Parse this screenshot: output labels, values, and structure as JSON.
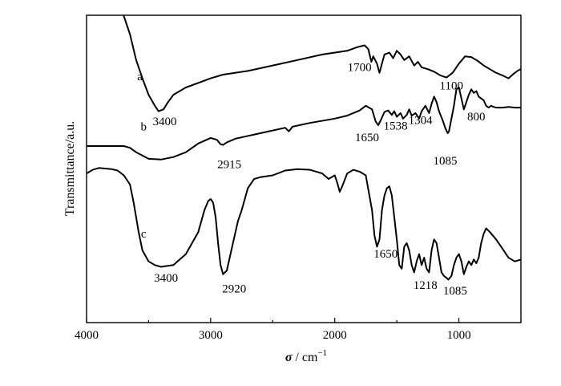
{
  "chart_data": {
    "type": "line",
    "xlabel_symbol": "σ",
    "xlabel_unit": "cm",
    "xlabel_exp": "−1",
    "ylabel": "Transmittance/a.u.",
    "xlim": [
      4000,
      500
    ],
    "reversed_x": true,
    "x_ticks": [
      "4000",
      "3000",
      "2000",
      "1000"
    ],
    "x_tick_values": [
      4000,
      3000,
      2000,
      1000
    ],
    "series": [
      {
        "name": "a",
        "label_at": [
          3570,
          1.25
        ],
        "points": [
          [
            3700,
            3.0
          ],
          [
            3650,
            2.5
          ],
          [
            3600,
            1.8
          ],
          [
            3550,
            1.3
          ],
          [
            3500,
            0.85
          ],
          [
            3450,
            0.55
          ],
          [
            3420,
            0.4
          ],
          [
            3380,
            0.45
          ],
          [
            3350,
            0.62
          ],
          [
            3300,
            0.85
          ],
          [
            3200,
            1.05
          ],
          [
            3000,
            1.3
          ],
          [
            2900,
            1.4
          ],
          [
            2700,
            1.5
          ],
          [
            2500,
            1.65
          ],
          [
            2300,
            1.8
          ],
          [
            2100,
            1.95
          ],
          [
            1900,
            2.05
          ],
          [
            1820,
            2.15
          ],
          [
            1760,
            2.2
          ],
          [
            1730,
            2.1
          ],
          [
            1705,
            1.75
          ],
          [
            1690,
            1.9
          ],
          [
            1660,
            1.7
          ],
          [
            1640,
            1.45
          ],
          [
            1620,
            1.7
          ],
          [
            1600,
            1.95
          ],
          [
            1560,
            2.0
          ],
          [
            1530,
            1.85
          ],
          [
            1500,
            2.05
          ],
          [
            1470,
            1.95
          ],
          [
            1440,
            1.8
          ],
          [
            1400,
            1.9
          ],
          [
            1360,
            1.65
          ],
          [
            1330,
            1.75
          ],
          [
            1300,
            1.6
          ],
          [
            1250,
            1.55
          ],
          [
            1200,
            1.48
          ],
          [
            1150,
            1.38
          ],
          [
            1100,
            1.32
          ],
          [
            1050,
            1.45
          ],
          [
            1000,
            1.7
          ],
          [
            950,
            1.9
          ],
          [
            900,
            1.88
          ],
          [
            850,
            1.78
          ],
          [
            800,
            1.65
          ],
          [
            750,
            1.55
          ],
          [
            700,
            1.45
          ],
          [
            650,
            1.38
          ],
          [
            600,
            1.3
          ],
          [
            560,
            1.42
          ],
          [
            520,
            1.52
          ],
          [
            500,
            1.55
          ]
        ]
      },
      {
        "name": "b",
        "label_at": [
          3540,
          -0.12
        ],
        "points": [
          [
            4000,
            -0.55
          ],
          [
            3900,
            -0.55
          ],
          [
            3800,
            -0.55
          ],
          [
            3700,
            -0.55
          ],
          [
            3650,
            -0.6
          ],
          [
            3600,
            -0.72
          ],
          [
            3500,
            -0.9
          ],
          [
            3400,
            -0.92
          ],
          [
            3300,
            -0.85
          ],
          [
            3200,
            -0.72
          ],
          [
            3100,
            -0.48
          ],
          [
            3000,
            -0.33
          ],
          [
            2950,
            -0.38
          ],
          [
            2920,
            -0.5
          ],
          [
            2900,
            -0.52
          ],
          [
            2870,
            -0.45
          ],
          [
            2800,
            -0.35
          ],
          [
            2600,
            -0.2
          ],
          [
            2400,
            -0.05
          ],
          [
            2370,
            -0.15
          ],
          [
            2340,
            -0.02
          ],
          [
            2200,
            0.08
          ],
          [
            2000,
            0.2
          ],
          [
            1900,
            0.28
          ],
          [
            1800,
            0.42
          ],
          [
            1750,
            0.55
          ],
          [
            1700,
            0.45
          ],
          [
            1670,
            0.12
          ],
          [
            1650,
            0.02
          ],
          [
            1630,
            0.15
          ],
          [
            1600,
            0.38
          ],
          [
            1570,
            0.42
          ],
          [
            1540,
            0.3
          ],
          [
            1520,
            0.4
          ],
          [
            1500,
            0.25
          ],
          [
            1470,
            0.35
          ],
          [
            1450,
            0.2
          ],
          [
            1420,
            0.3
          ],
          [
            1400,
            0.45
          ],
          [
            1380,
            0.28
          ],
          [
            1350,
            0.35
          ],
          [
            1320,
            0.2
          ],
          [
            1300,
            0.4
          ],
          [
            1270,
            0.55
          ],
          [
            1240,
            0.35
          ],
          [
            1220,
            0.6
          ],
          [
            1200,
            0.8
          ],
          [
            1180,
            0.65
          ],
          [
            1160,
            0.4
          ],
          [
            1130,
            0.15
          ],
          [
            1110,
            -0.05
          ],
          [
            1090,
            -0.2
          ],
          [
            1080,
            -0.15
          ],
          [
            1060,
            0.2
          ],
          [
            1040,
            0.55
          ],
          [
            1020,
            1.0
          ],
          [
            1000,
            1.05
          ],
          [
            980,
            0.75
          ],
          [
            960,
            0.45
          ],
          [
            940,
            0.65
          ],
          [
            920,
            0.85
          ],
          [
            900,
            1.0
          ],
          [
            880,
            0.9
          ],
          [
            860,
            0.95
          ],
          [
            840,
            0.8
          ],
          [
            820,
            0.75
          ],
          [
            800,
            0.7
          ],
          [
            780,
            0.55
          ],
          [
            760,
            0.5
          ],
          [
            740,
            0.55
          ],
          [
            720,
            0.52
          ],
          [
            700,
            0.5
          ],
          [
            650,
            0.5
          ],
          [
            600,
            0.52
          ],
          [
            550,
            0.5
          ],
          [
            500,
            0.5
          ]
        ]
      },
      {
        "name": "c",
        "label_at": [
          3540,
          -3.05
        ],
        "points": [
          [
            4000,
            -1.3
          ],
          [
            3950,
            -1.2
          ],
          [
            3900,
            -1.15
          ],
          [
            3800,
            -1.18
          ],
          [
            3750,
            -1.22
          ],
          [
            3700,
            -1.35
          ],
          [
            3650,
            -1.6
          ],
          [
            3620,
            -2.1
          ],
          [
            3580,
            -2.9
          ],
          [
            3550,
            -3.4
          ],
          [
            3500,
            -3.7
          ],
          [
            3450,
            -3.8
          ],
          [
            3400,
            -3.85
          ],
          [
            3300,
            -3.8
          ],
          [
            3200,
            -3.5
          ],
          [
            3100,
            -2.9
          ],
          [
            3050,
            -2.3
          ],
          [
            3020,
            -2.05
          ],
          [
            3000,
            -2.0
          ],
          [
            2980,
            -2.1
          ],
          [
            2960,
            -2.5
          ],
          [
            2940,
            -3.2
          ],
          [
            2920,
            -3.8
          ],
          [
            2900,
            -4.05
          ],
          [
            2870,
            -3.95
          ],
          [
            2840,
            -3.5
          ],
          [
            2800,
            -2.9
          ],
          [
            2780,
            -2.6
          ],
          [
            2750,
            -2.3
          ],
          [
            2700,
            -1.7
          ],
          [
            2650,
            -1.45
          ],
          [
            2600,
            -1.4
          ],
          [
            2500,
            -1.35
          ],
          [
            2400,
            -1.22
          ],
          [
            2300,
            -1.18
          ],
          [
            2200,
            -1.2
          ],
          [
            2100,
            -1.3
          ],
          [
            2050,
            -1.45
          ],
          [
            2000,
            -1.35
          ],
          [
            1980,
            -1.55
          ],
          [
            1960,
            -1.8
          ],
          [
            1940,
            -1.65
          ],
          [
            1900,
            -1.3
          ],
          [
            1850,
            -1.2
          ],
          [
            1800,
            -1.25
          ],
          [
            1750,
            -1.35
          ],
          [
            1700,
            -2.3
          ],
          [
            1680,
            -3.0
          ],
          [
            1660,
            -3.3
          ],
          [
            1640,
            -3.1
          ],
          [
            1620,
            -2.3
          ],
          [
            1600,
            -1.9
          ],
          [
            1580,
            -1.7
          ],
          [
            1560,
            -1.65
          ],
          [
            1540,
            -1.9
          ],
          [
            1520,
            -2.5
          ],
          [
            1500,
            -3.1
          ],
          [
            1480,
            -3.8
          ],
          [
            1460,
            -3.9
          ],
          [
            1440,
            -3.3
          ],
          [
            1420,
            -3.2
          ],
          [
            1400,
            -3.4
          ],
          [
            1380,
            -3.8
          ],
          [
            1360,
            -4.0
          ],
          [
            1340,
            -3.7
          ],
          [
            1320,
            -3.5
          ],
          [
            1300,
            -3.8
          ],
          [
            1280,
            -3.6
          ],
          [
            1260,
            -3.9
          ],
          [
            1240,
            -4.0
          ],
          [
            1220,
            -3.4
          ],
          [
            1200,
            -3.1
          ],
          [
            1180,
            -3.2
          ],
          [
            1160,
            -3.6
          ],
          [
            1140,
            -4.0
          ],
          [
            1120,
            -4.1
          ],
          [
            1100,
            -4.15
          ],
          [
            1085,
            -4.2
          ],
          [
            1060,
            -4.1
          ],
          [
            1040,
            -3.8
          ],
          [
            1020,
            -3.6
          ],
          [
            1000,
            -3.5
          ],
          [
            980,
            -3.7
          ],
          [
            960,
            -4.05
          ],
          [
            940,
            -3.85
          ],
          [
            920,
            -3.7
          ],
          [
            900,
            -3.8
          ],
          [
            880,
            -3.65
          ],
          [
            860,
            -3.75
          ],
          [
            840,
            -3.6
          ],
          [
            820,
            -3.2
          ],
          [
            800,
            -2.95
          ],
          [
            780,
            -2.8
          ],
          [
            750,
            -2.9
          ],
          [
            700,
            -3.1
          ],
          [
            650,
            -3.35
          ],
          [
            600,
            -3.6
          ],
          [
            550,
            -3.7
          ],
          [
            500,
            -3.65
          ]
        ]
      }
    ],
    "annotations": [
      {
        "text": "3400",
        "x": 3370,
        "y": 0.02
      },
      {
        "text": "1700",
        "x": 1800,
        "y": 1.5
      },
      {
        "text": "1100",
        "x": 1060,
        "y": 1.0
      },
      {
        "text": "2915",
        "x": 2850,
        "y": -1.15
      },
      {
        "text": "1650",
        "x": 1740,
        "y": -0.42
      },
      {
        "text": "1538",
        "x": 1510,
        "y": -0.1
      },
      {
        "text": "1304",
        "x": 1310,
        "y": 0.05
      },
      {
        "text": "800",
        "x": 860,
        "y": 0.15
      },
      {
        "text": "1085",
        "x": 1110,
        "y": -1.05
      },
      {
        "text": "3400",
        "x": 3360,
        "y": -4.25
      },
      {
        "text": "2920",
        "x": 2810,
        "y": -4.55
      },
      {
        "text": "1650",
        "x": 1590,
        "y": -3.6
      },
      {
        "text": "1218",
        "x": 1270,
        "y": -4.45
      },
      {
        "text": "1085",
        "x": 1030,
        "y": -4.6
      }
    ],
    "grid": false,
    "legend": "none",
    "ylim": [
      -5.0,
      3.0
    ]
  }
}
